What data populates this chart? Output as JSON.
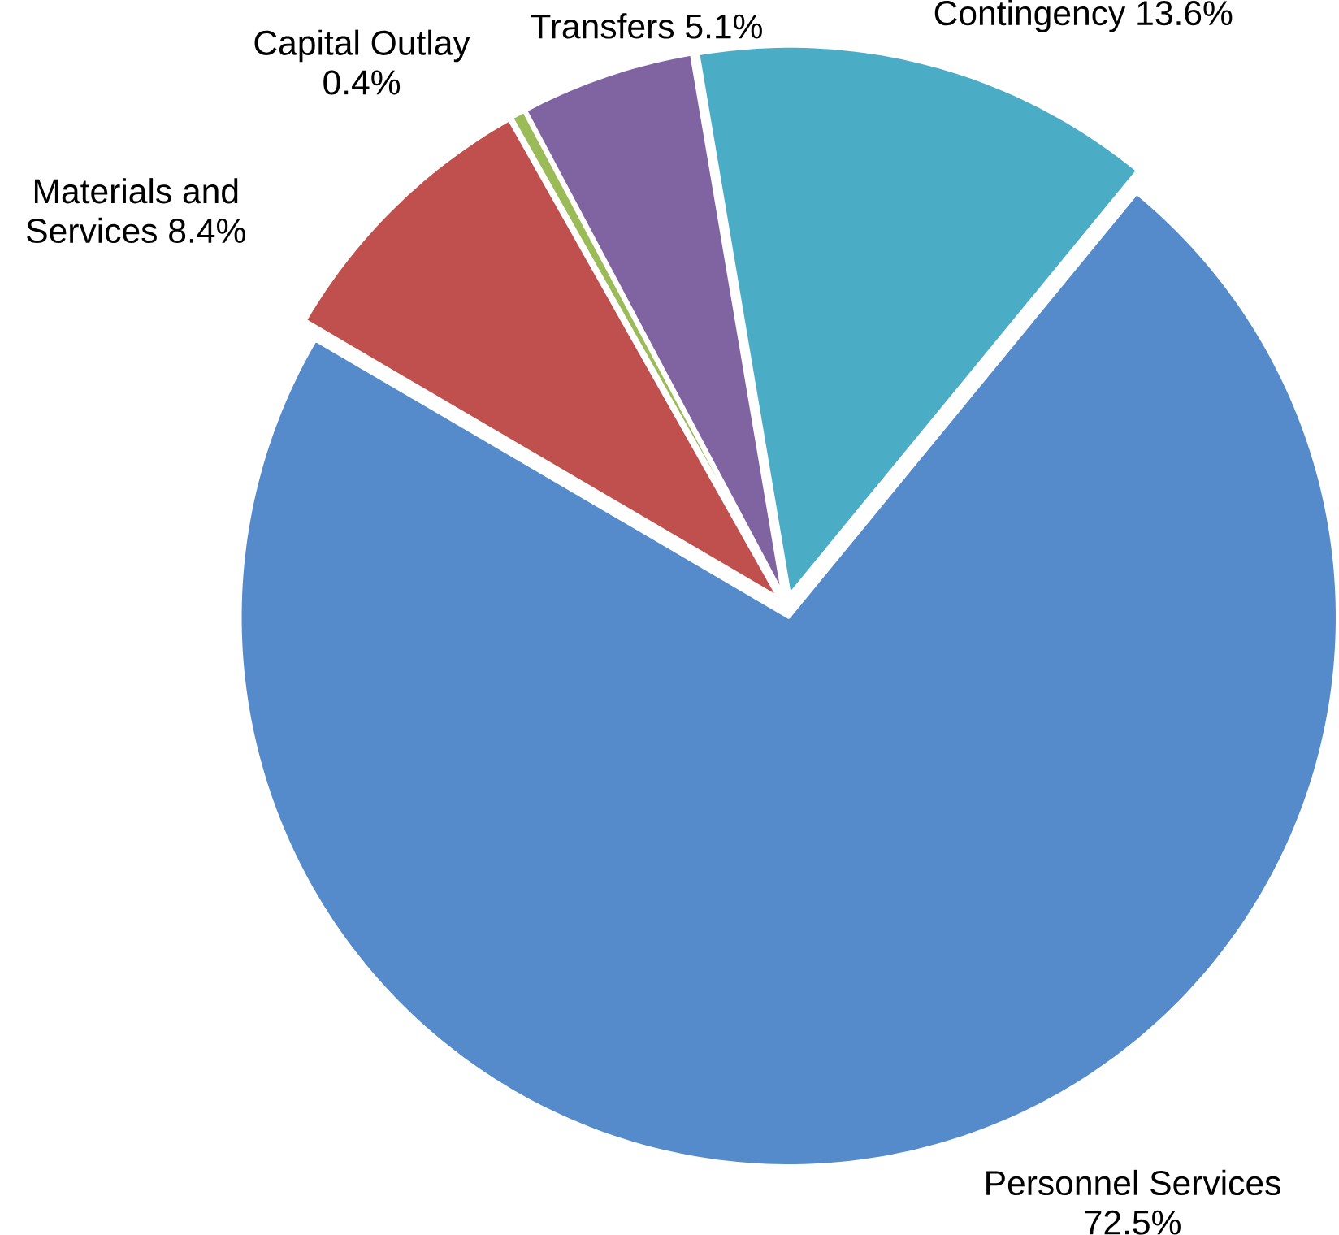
{
  "chart_data": {
    "type": "pie",
    "categories": [
      "Contingency",
      "Personnel Services",
      "Materials and Services",
      "Capital Outlay",
      "Transfers"
    ],
    "values": [
      13.6,
      72.5,
      8.4,
      0.4,
      5.1
    ],
    "colors": [
      "#4bacc6",
      "#558acb",
      "#c0504d",
      "#9bbb59",
      "#8064a2"
    ],
    "value_labels": [
      "13.6%",
      "72.5%",
      "8.4%",
      "0.4%",
      "5.1%"
    ]
  }
}
